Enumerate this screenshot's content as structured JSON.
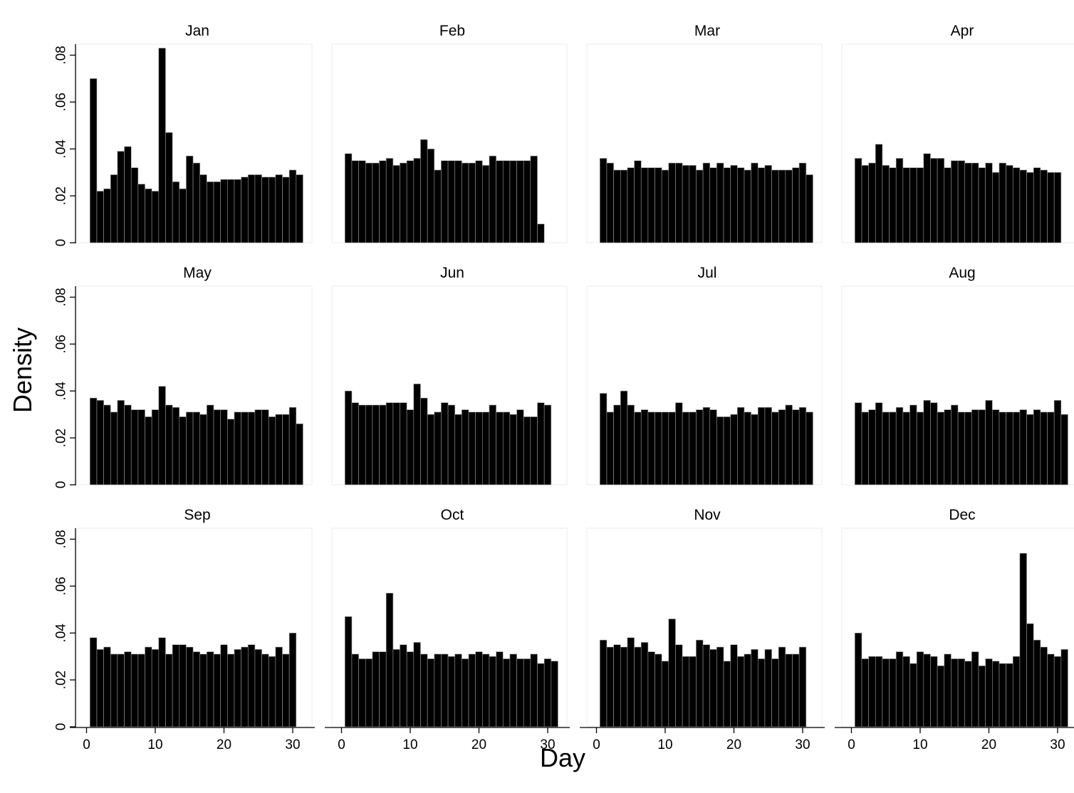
{
  "chart_data": {
    "type": "bar",
    "chart_kind": "small-multiple histograms (3 rows x 4 columns)",
    "xlabel": "Day",
    "ylabel": "Density",
    "xlim": [
      0,
      31
    ],
    "ylim": [
      0,
      0.085
    ],
    "x_ticks": [
      0,
      10,
      20,
      30
    ],
    "x_tick_labels": [
      "0",
      "10",
      "20",
      "30"
    ],
    "y_ticks": [
      0,
      0.02,
      0.04,
      0.06,
      0.08
    ],
    "y_tick_labels": [
      "0",
      ".02",
      ".04",
      ".06",
      ".08"
    ],
    "bar_color": "#000000",
    "grid": false,
    "panels": [
      {
        "title": "Jan",
        "days": [
          1,
          2,
          3,
          4,
          5,
          6,
          7,
          8,
          9,
          10,
          11,
          12,
          13,
          14,
          15,
          16,
          17,
          18,
          19,
          20,
          21,
          22,
          23,
          24,
          25,
          26,
          27,
          28,
          29,
          30,
          31
        ],
        "values": [
          0.07,
          0.022,
          0.023,
          0.029,
          0.039,
          0.041,
          0.032,
          0.025,
          0.023,
          0.022,
          0.083,
          0.047,
          0.026,
          0.023,
          0.037,
          0.034,
          0.029,
          0.026,
          0.026,
          0.027,
          0.027,
          0.027,
          0.028,
          0.029,
          0.029,
          0.028,
          0.028,
          0.029,
          0.028,
          0.031,
          0.029
        ]
      },
      {
        "title": "Feb",
        "days": [
          1,
          2,
          3,
          4,
          5,
          6,
          7,
          8,
          9,
          10,
          11,
          12,
          13,
          14,
          15,
          16,
          17,
          18,
          19,
          20,
          21,
          22,
          23,
          24,
          25,
          26,
          27,
          28,
          29
        ],
        "values": [
          0.038,
          0.035,
          0.035,
          0.034,
          0.034,
          0.035,
          0.036,
          0.033,
          0.034,
          0.035,
          0.036,
          0.044,
          0.04,
          0.031,
          0.035,
          0.035,
          0.035,
          0.034,
          0.034,
          0.035,
          0.033,
          0.037,
          0.035,
          0.035,
          0.035,
          0.035,
          0.035,
          0.037,
          0.008
        ]
      },
      {
        "title": "Mar",
        "days": [
          1,
          2,
          3,
          4,
          5,
          6,
          7,
          8,
          9,
          10,
          11,
          12,
          13,
          14,
          15,
          16,
          17,
          18,
          19,
          20,
          21,
          22,
          23,
          24,
          25,
          26,
          27,
          28,
          29,
          30,
          31
        ],
        "values": [
          0.036,
          0.034,
          0.031,
          0.031,
          0.032,
          0.035,
          0.032,
          0.032,
          0.032,
          0.031,
          0.034,
          0.034,
          0.033,
          0.033,
          0.031,
          0.034,
          0.032,
          0.034,
          0.032,
          0.033,
          0.032,
          0.031,
          0.034,
          0.032,
          0.033,
          0.031,
          0.031,
          0.031,
          0.032,
          0.034,
          0.029
        ]
      },
      {
        "title": "Apr",
        "days": [
          1,
          2,
          3,
          4,
          5,
          6,
          7,
          8,
          9,
          10,
          11,
          12,
          13,
          14,
          15,
          16,
          17,
          18,
          19,
          20,
          21,
          22,
          23,
          24,
          25,
          26,
          27,
          28,
          29,
          30
        ],
        "values": [
          0.036,
          0.033,
          0.034,
          0.042,
          0.033,
          0.032,
          0.036,
          0.032,
          0.032,
          0.032,
          0.038,
          0.036,
          0.036,
          0.032,
          0.035,
          0.035,
          0.034,
          0.034,
          0.032,
          0.034,
          0.03,
          0.034,
          0.033,
          0.032,
          0.031,
          0.03,
          0.032,
          0.031,
          0.03,
          0.03
        ]
      },
      {
        "title": "May",
        "days": [
          1,
          2,
          3,
          4,
          5,
          6,
          7,
          8,
          9,
          10,
          11,
          12,
          13,
          14,
          15,
          16,
          17,
          18,
          19,
          20,
          21,
          22,
          23,
          24,
          25,
          26,
          27,
          28,
          29,
          30,
          31
        ],
        "values": [
          0.037,
          0.036,
          0.034,
          0.031,
          0.036,
          0.034,
          0.032,
          0.032,
          0.029,
          0.032,
          0.042,
          0.034,
          0.033,
          0.029,
          0.031,
          0.031,
          0.03,
          0.034,
          0.032,
          0.032,
          0.028,
          0.031,
          0.031,
          0.031,
          0.032,
          0.032,
          0.029,
          0.03,
          0.03,
          0.033,
          0.026
        ]
      },
      {
        "title": "Jun",
        "days": [
          1,
          2,
          3,
          4,
          5,
          6,
          7,
          8,
          9,
          10,
          11,
          12,
          13,
          14,
          15,
          16,
          17,
          18,
          19,
          20,
          21,
          22,
          23,
          24,
          25,
          26,
          27,
          28,
          29,
          30
        ],
        "values": [
          0.04,
          0.035,
          0.034,
          0.034,
          0.034,
          0.034,
          0.035,
          0.035,
          0.035,
          0.032,
          0.043,
          0.037,
          0.03,
          0.031,
          0.035,
          0.034,
          0.03,
          0.032,
          0.031,
          0.031,
          0.031,
          0.034,
          0.031,
          0.031,
          0.03,
          0.032,
          0.029,
          0.029,
          0.035,
          0.034
        ]
      },
      {
        "title": "Jul",
        "days": [
          1,
          2,
          3,
          4,
          5,
          6,
          7,
          8,
          9,
          10,
          11,
          12,
          13,
          14,
          15,
          16,
          17,
          18,
          19,
          20,
          21,
          22,
          23,
          24,
          25,
          26,
          27,
          28,
          29,
          30,
          31
        ],
        "values": [
          0.039,
          0.031,
          0.034,
          0.04,
          0.034,
          0.031,
          0.032,
          0.031,
          0.031,
          0.031,
          0.031,
          0.035,
          0.031,
          0.031,
          0.032,
          0.033,
          0.032,
          0.029,
          0.029,
          0.03,
          0.033,
          0.031,
          0.03,
          0.033,
          0.033,
          0.031,
          0.032,
          0.034,
          0.032,
          0.033,
          0.031
        ]
      },
      {
        "title": "Aug",
        "days": [
          1,
          2,
          3,
          4,
          5,
          6,
          7,
          8,
          9,
          10,
          11,
          12,
          13,
          14,
          15,
          16,
          17,
          18,
          19,
          20,
          21,
          22,
          23,
          24,
          25,
          26,
          27,
          28,
          29,
          30,
          31
        ],
        "values": [
          0.035,
          0.031,
          0.032,
          0.035,
          0.031,
          0.031,
          0.033,
          0.031,
          0.034,
          0.031,
          0.036,
          0.035,
          0.031,
          0.032,
          0.034,
          0.031,
          0.031,
          0.032,
          0.032,
          0.036,
          0.032,
          0.031,
          0.031,
          0.031,
          0.032,
          0.03,
          0.032,
          0.031,
          0.031,
          0.036,
          0.03
        ]
      },
      {
        "title": "Sep",
        "days": [
          1,
          2,
          3,
          4,
          5,
          6,
          7,
          8,
          9,
          10,
          11,
          12,
          13,
          14,
          15,
          16,
          17,
          18,
          19,
          20,
          21,
          22,
          23,
          24,
          25,
          26,
          27,
          28,
          29,
          30
        ],
        "values": [
          0.038,
          0.033,
          0.034,
          0.031,
          0.031,
          0.032,
          0.031,
          0.031,
          0.034,
          0.033,
          0.038,
          0.031,
          0.035,
          0.035,
          0.034,
          0.032,
          0.031,
          0.032,
          0.031,
          0.035,
          0.031,
          0.033,
          0.034,
          0.035,
          0.033,
          0.031,
          0.03,
          0.034,
          0.031,
          0.04
        ]
      },
      {
        "title": "Oct",
        "days": [
          1,
          2,
          3,
          4,
          5,
          6,
          7,
          8,
          9,
          10,
          11,
          12,
          13,
          14,
          15,
          16,
          17,
          18,
          19,
          20,
          21,
          22,
          23,
          24,
          25,
          26,
          27,
          28,
          29,
          30,
          31
        ],
        "values": [
          0.047,
          0.031,
          0.029,
          0.029,
          0.032,
          0.032,
          0.057,
          0.033,
          0.035,
          0.032,
          0.036,
          0.031,
          0.029,
          0.031,
          0.031,
          0.03,
          0.031,
          0.029,
          0.031,
          0.032,
          0.031,
          0.03,
          0.032,
          0.029,
          0.031,
          0.029,
          0.029,
          0.031,
          0.027,
          0.029,
          0.028
        ]
      },
      {
        "title": "Nov",
        "days": [
          1,
          2,
          3,
          4,
          5,
          6,
          7,
          8,
          9,
          10,
          11,
          12,
          13,
          14,
          15,
          16,
          17,
          18,
          19,
          20,
          21,
          22,
          23,
          24,
          25,
          26,
          27,
          28,
          29,
          30
        ],
        "values": [
          0.037,
          0.034,
          0.035,
          0.034,
          0.038,
          0.034,
          0.036,
          0.032,
          0.031,
          0.028,
          0.046,
          0.035,
          0.03,
          0.03,
          0.037,
          0.035,
          0.033,
          0.034,
          0.028,
          0.035,
          0.03,
          0.031,
          0.033,
          0.029,
          0.033,
          0.029,
          0.034,
          0.031,
          0.031,
          0.034
        ]
      },
      {
        "title": "Dec",
        "days": [
          1,
          2,
          3,
          4,
          5,
          6,
          7,
          8,
          9,
          10,
          11,
          12,
          13,
          14,
          15,
          16,
          17,
          18,
          19,
          20,
          21,
          22,
          23,
          24,
          25,
          26,
          27,
          28,
          29,
          30,
          31
        ],
        "values": [
          0.04,
          0.029,
          0.03,
          0.03,
          0.029,
          0.029,
          0.032,
          0.03,
          0.027,
          0.032,
          0.031,
          0.03,
          0.026,
          0.031,
          0.029,
          0.029,
          0.028,
          0.032,
          0.026,
          0.029,
          0.028,
          0.027,
          0.027,
          0.03,
          0.074,
          0.044,
          0.037,
          0.034,
          0.031,
          0.03,
          0.033
        ]
      }
    ]
  }
}
